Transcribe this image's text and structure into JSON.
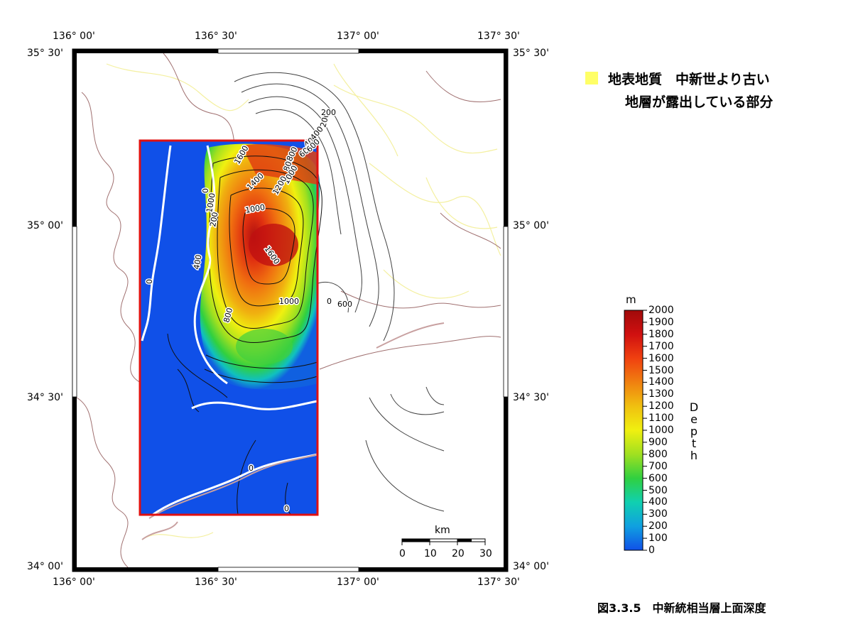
{
  "map": {
    "top_lon_labels": [
      "136° 00'",
      "136° 30'",
      "137° 00'",
      "137° 30'"
    ],
    "bottom_lon_labels": [
      "136° 00'",
      "136° 30'",
      "137° 00'",
      "137° 30'"
    ],
    "left_lat_labels": [
      "35° 30'",
      "35° 00'",
      "34° 30'",
      "34° 00'"
    ],
    "right_lat_labels": [
      "35° 30'",
      "35° 00'",
      "34° 30'",
      "34° 00'"
    ],
    "contour_labels": [
      "200",
      "400",
      "600",
      "800",
      "1000",
      "1200",
      "1400",
      "1600",
      "0",
      "1000",
      "1600",
      "800",
      "1000",
      "600",
      "400",
      "200",
      "0",
      "0",
      "0",
      "0",
      "200",
      "400",
      "600",
      "800",
      "1000"
    ]
  },
  "legend": {
    "line1": "地表地質　中新世より古い",
    "line2": "地層が露出している部分",
    "swatch_color": "#ffff66"
  },
  "colorbar": {
    "unit": "m",
    "label": "Depth",
    "ticks": [
      "2000",
      "1900",
      "1800",
      "1700",
      "1600",
      "1500",
      "1400",
      "1300",
      "1200",
      "1100",
      "1000",
      "900",
      "800",
      "700",
      "600",
      "500",
      "400",
      "300",
      "200",
      "100",
      "0"
    ],
    "colors": [
      "#1060e0",
      "#10a0e0",
      "#10d0b0",
      "#30d040",
      "#a0e020",
      "#f0f010",
      "#f0b010",
      "#f07010",
      "#e03010",
      "#b01010"
    ]
  },
  "scalebar": {
    "unit": "km",
    "ticks": [
      "0",
      "10",
      "20",
      "30"
    ]
  },
  "caption": "図3.3.5　中新統相当層上面深度",
  "frame_color": "#e01010"
}
